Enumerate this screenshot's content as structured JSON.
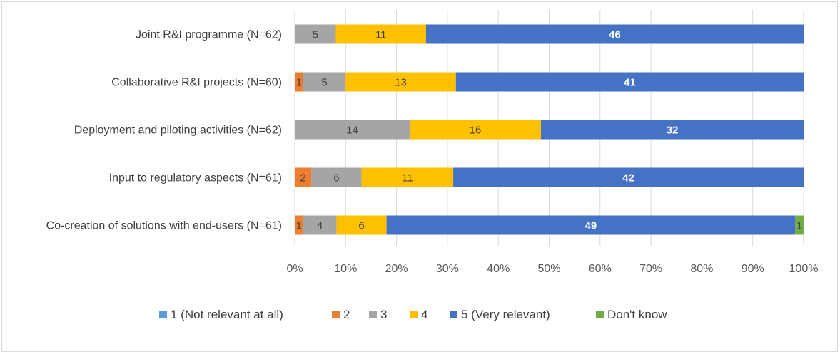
{
  "chart_data": {
    "type": "bar",
    "orientation": "horizontal",
    "stacked": "percent",
    "categories": [
      "Joint R&I programme (N=62)",
      "Collaborative R&I projects (N=60)",
      "Deployment and piloting activities (N=62)",
      "Input to regulatory aspects (N=61)",
      "Co-creation of solutions with end-users (N=61)"
    ],
    "series": [
      {
        "name": "1 (Not relevant at all)",
        "color": "#5B9BD5",
        "label_color": "#404040",
        "values": [
          0,
          0,
          0,
          0,
          0
        ]
      },
      {
        "name": "2",
        "color": "#ED7D31",
        "label_color": "#404040",
        "values": [
          0,
          1,
          0,
          2,
          1
        ]
      },
      {
        "name": "3",
        "color": "#A5A5A5",
        "label_color": "#404040",
        "values": [
          5,
          5,
          14,
          6,
          4
        ]
      },
      {
        "name": "4",
        "color": "#FFC000",
        "label_color": "#404040",
        "values": [
          11,
          13,
          16,
          11,
          6
        ]
      },
      {
        "name": "5 (Very relevant)",
        "color": "#4472C4",
        "label_color": "#FFFFFF",
        "values": [
          46,
          41,
          32,
          42,
          49
        ]
      },
      {
        "name": "Don't know",
        "color": "#70AD47",
        "label_color": "#404040",
        "values": [
          0,
          0,
          0,
          0,
          1
        ]
      }
    ],
    "xlim": [
      0,
      100
    ],
    "xticks": [
      "0%",
      "10%",
      "20%",
      "30%",
      "40%",
      "50%",
      "60%",
      "70%",
      "80%",
      "90%",
      "100%"
    ],
    "grid": "vertical",
    "legend_position": "bottom"
  }
}
